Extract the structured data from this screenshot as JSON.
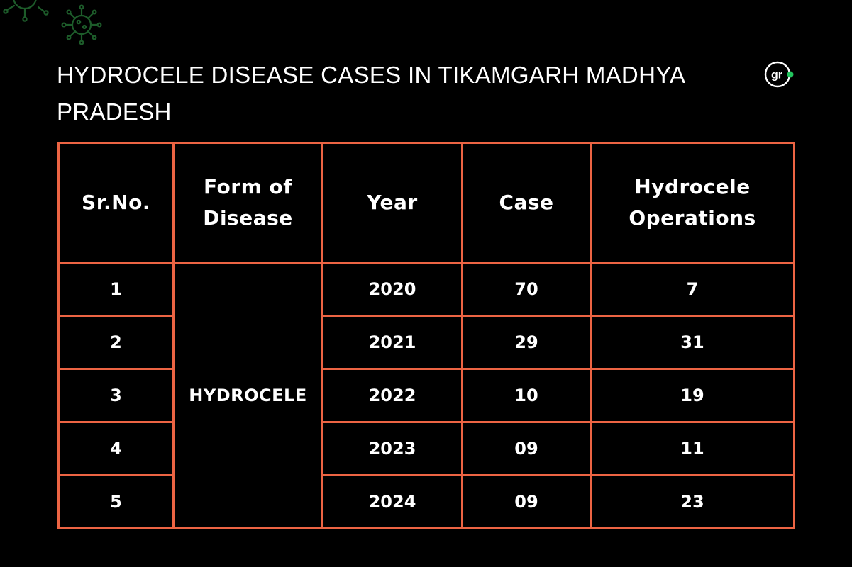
{
  "title": "HYDROCELE  DISEASE CASES IN TIKAMGARH MADHYA PRADESH",
  "logo": {
    "text": "gr"
  },
  "decor": {
    "icon": "virus-icon"
  },
  "colors": {
    "background": "#000000",
    "border": "#ec6443",
    "text": "#ffffff",
    "accent": "#22c55e"
  },
  "chart_data": {
    "type": "table",
    "title": "HYDROCELE  DISEASE CASES IN TIKAMGARH MADHYA PRADESH",
    "columns": [
      "Sr.No.",
      "Form of Disease",
      "Year",
      "Case",
      "Hydrocele Operations"
    ],
    "header_lines": {
      "form": [
        "Form of",
        "Disease"
      ],
      "ops": [
        "Hydrocele",
        "Operations"
      ]
    },
    "form_of_disease": "HYDROCELE",
    "rows": [
      {
        "sr": "1",
        "year": "2020",
        "case": "70",
        "ops": "7"
      },
      {
        "sr": "2",
        "year": "2021",
        "case": "29",
        "ops": "31"
      },
      {
        "sr": "3",
        "year": "2022",
        "case": "10",
        "ops": "19"
      },
      {
        "sr": "4",
        "year": "2023",
        "case": "09",
        "ops": "11"
      },
      {
        "sr": "5",
        "year": "2024",
        "case": "09",
        "ops": "23"
      }
    ]
  }
}
